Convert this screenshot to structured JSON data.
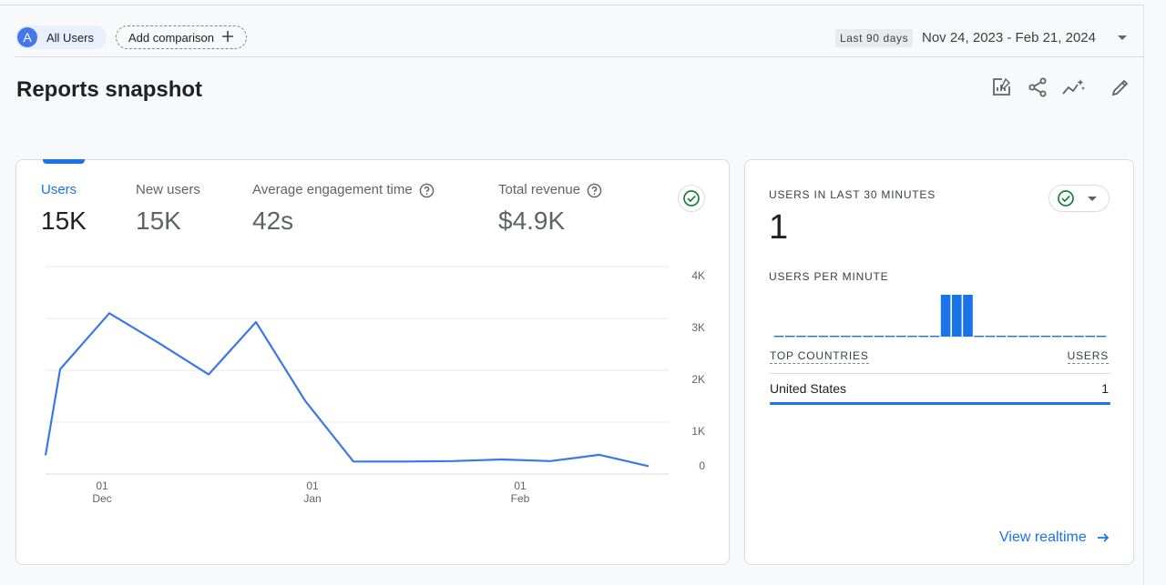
{
  "filter_bar": {
    "avatar_letter": "A",
    "segment_label": "All Users",
    "add_comparison_label": "Add comparison",
    "date_preset": "Last 90 days",
    "date_range": "Nov 24, 2023 - Feb 21, 2024"
  },
  "page": {
    "title": "Reports snapshot"
  },
  "toolbar": {
    "icons": [
      "customize-report-icon",
      "share-icon",
      "insights-icon",
      "edit-icon"
    ]
  },
  "metrics": [
    {
      "label": "Users",
      "value": "15K",
      "active": true
    },
    {
      "label": "New users",
      "value": "15K",
      "active": false
    },
    {
      "label": "Average engagement time",
      "value": "42s",
      "active": false
    },
    {
      "label": "Total revenue",
      "value": "$4.9K",
      "active": false
    }
  ],
  "chart_data": {
    "type": "line",
    "y_ticks": [
      "4K",
      "3K",
      "2K",
      "1K",
      "0"
    ],
    "ylim": [
      0,
      4000
    ],
    "x_ticks": [
      {
        "day": "01",
        "month": "Dec"
      },
      {
        "day": "01",
        "month": "Jan"
      },
      {
        "day": "01",
        "month": "Feb"
      }
    ],
    "x": [
      "Nov 24",
      "Nov 25",
      "Dec 2",
      "Dec 9",
      "Dec 16",
      "Dec 23",
      "Dec 30",
      "Jan 6",
      "Jan 13",
      "Jan 20",
      "Jan 27",
      "Feb 3",
      "Feb 10",
      "Feb 17",
      "Feb 21"
    ],
    "series": [
      {
        "values": [
          360,
          2020,
          3100,
          2530,
          1920,
          2930,
          1410,
          240,
          240,
          250,
          280,
          250,
          370,
          150,
          150
        ]
      }
    ],
    "color": "#3b78e7"
  },
  "realtime": {
    "users_label": "USERS IN LAST 30 MINUTES",
    "users_count": "1",
    "per_minute_label": "USERS PER MINUTE",
    "per_minute_values": [
      0,
      0,
      0,
      0,
      0,
      0,
      0,
      0,
      0,
      0,
      0,
      0,
      0,
      0,
      0,
      1,
      1,
      1,
      0,
      0,
      0,
      0,
      0,
      0,
      0,
      0,
      0,
      0,
      0,
      0
    ],
    "bar_color": "#1a73e8",
    "table": {
      "col_country": "TOP COUNTRIES",
      "col_users": "USERS",
      "rows": [
        {
          "country": "United States",
          "users": "1"
        }
      ]
    },
    "view_realtime_label": "View realtime"
  }
}
